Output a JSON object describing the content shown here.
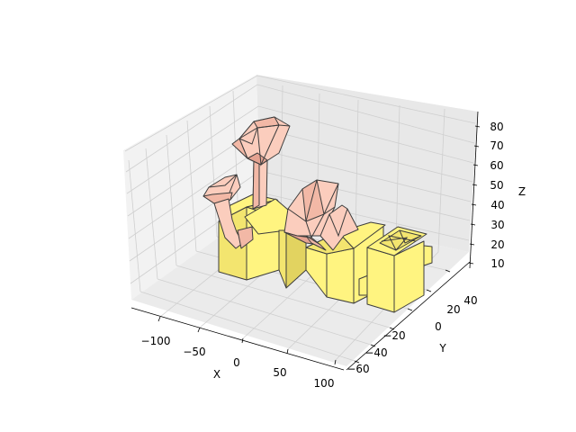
{
  "chart_data": {
    "type": "3d-polygon-surface",
    "title": "",
    "xlabel": "X",
    "ylabel": "Y",
    "zlabel": "Z",
    "xlim": [
      -130,
      110
    ],
    "ylim": [
      -70,
      45
    ],
    "zlim": [
      3,
      87
    ],
    "x_ticks": [
      -100,
      -50,
      0,
      50,
      100
    ],
    "y_ticks": [
      -60,
      -40,
      -20,
      0,
      20,
      40
    ],
    "z_ticks": [
      10,
      20,
      30,
      40,
      50,
      60,
      70,
      80
    ],
    "grid": true,
    "colors": {
      "base": "#fff480",
      "top": "#fbcdbd",
      "edge": "#3d3d3d",
      "pane": "#f2f2f2",
      "grid": "#cfcfcf"
    },
    "series": [
      {
        "color": "base",
        "shape": "box-cluster",
        "x_range": [
          -110,
          100
        ],
        "y_range": [
          -45,
          40
        ],
        "z_range": [
          3,
          35
        ]
      },
      {
        "color": "top",
        "shape": "tube-and-bowl",
        "x_range": [
          -115,
          -60
        ],
        "y_range": [
          -20,
          20
        ],
        "z_range": [
          30,
          85
        ]
      }
    ]
  }
}
